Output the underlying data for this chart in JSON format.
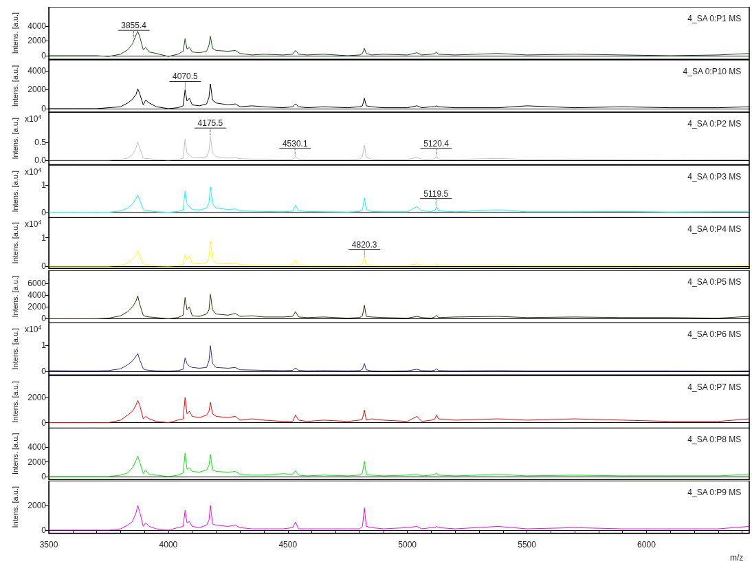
{
  "chart_data": [
    {
      "type": "line",
      "title": "4_SA 0:P1 MS",
      "ylabel": "Intens. [a.u.]",
      "xlim": [
        3500,
        6430
      ],
      "ylim": [
        -480,
        6570
      ],
      "yticks": [
        0,
        2000,
        4000
      ],
      "tick_labels": "y",
      "annotations": [
        {
          "text": "3855.4",
          "x": 3855.4,
          "y": 2300
        }
      ],
      "x": [
        3500,
        3600,
        3700,
        3750,
        3800,
        3830,
        3850,
        3865,
        3872,
        3880,
        3895,
        3905,
        3920,
        3950,
        4000,
        4040,
        4062,
        4070,
        4078,
        4088,
        4100,
        4130,
        4160,
        4170,
        4176,
        4185,
        4200,
        4250,
        4280,
        4300,
        4350,
        4400,
        4480,
        4520,
        4532,
        4545,
        4580,
        4650,
        4750,
        4800,
        4812,
        4820,
        4828,
        4850,
        4900,
        5000,
        5040,
        5060,
        5100,
        5115,
        5122,
        5130,
        5200,
        5380,
        5500,
        5700,
        5900,
        6100,
        6300,
        6430
      ],
      "series": [
        {
          "color": "#1a4a1a",
          "values": [
            0,
            0,
            0,
            -100,
            200,
            800,
            1600,
            2800,
            3300,
            2600,
            800,
            1100,
            500,
            300,
            -100,
            200,
            600,
            2300,
            900,
            1100,
            500,
            400,
            600,
            1400,
            2600,
            1000,
            700,
            600,
            700,
            300,
            100,
            200,
            100,
            200,
            700,
            200,
            100,
            200,
            0,
            100,
            300,
            1000,
            300,
            100,
            200,
            100,
            400,
            100,
            200,
            300,
            500,
            200,
            100,
            300,
            100,
            200,
            100,
            0,
            100,
            300
          ]
        }
      ]
    },
    {
      "type": "line",
      "title": "4_SA 0:P10 MS",
      "ylabel": "Intens. [a.u.]",
      "xlim": [
        3500,
        6430
      ],
      "ylim": [
        -360,
        5160
      ],
      "yticks": [
        0,
        2000,
        4000
      ],
      "tick_labels": "y",
      "annotations": [
        {
          "text": "4070.5",
          "x": 4070.5,
          "y": 2000
        }
      ],
      "x": [
        3500,
        3600,
        3700,
        3750,
        3800,
        3830,
        3850,
        3865,
        3872,
        3880,
        3895,
        3905,
        3920,
        3950,
        4000,
        4040,
        4062,
        4070,
        4078,
        4088,
        4100,
        4130,
        4160,
        4170,
        4176,
        4185,
        4200,
        4250,
        4280,
        4300,
        4350,
        4400,
        4480,
        4520,
        4532,
        4545,
        4580,
        4650,
        4750,
        4800,
        4812,
        4820,
        4828,
        4850,
        4900,
        5000,
        5040,
        5060,
        5100,
        5115,
        5122,
        5130,
        5200,
        5380,
        5500,
        5700,
        5900,
        6100,
        6300,
        6430
      ],
      "series": [
        {
          "color": "#000000",
          "values": [
            0,
            0,
            0,
            100,
            200,
            600,
            1000,
            1500,
            2100,
            1600,
            400,
            900,
            600,
            200,
            0,
            100,
            300,
            2000,
            800,
            1100,
            400,
            300,
            500,
            1200,
            2600,
            900,
            600,
            400,
            500,
            200,
            300,
            200,
            100,
            200,
            500,
            200,
            100,
            200,
            100,
            200,
            300,
            1100,
            300,
            200,
            100,
            100,
            300,
            100,
            200,
            200,
            300,
            200,
            100,
            100,
            300,
            100,
            200,
            100,
            100,
            200
          ]
        }
      ]
    },
    {
      "type": "line",
      "title": "4_SA 0:P2 MS",
      "ylabel": "Intens. [a.u.]",
      "xlim": [
        3500,
        6430
      ],
      "ylim": [
        -0.13,
        1.37
      ],
      "yticks": [
        {
          "value": 0,
          "label": "0.0"
        },
        0.5
      ],
      "tick_labels": "y",
      "annotations": [
        "x10$^{4}$",
        {
          "text": "4175.5",
          "x": 4175.5,
          "y": 0.68
        },
        {
          "text": "4530.1",
          "x": 4530.1,
          "y": 0.1
        },
        {
          "text": "5120.4",
          "x": 5120.4,
          "y": 0.1
        }
      ],
      "x": [
        3500,
        3600,
        3700,
        3750,
        3800,
        3830,
        3850,
        3865,
        3872,
        3880,
        3895,
        3905,
        3920,
        3950,
        4000,
        4040,
        4062,
        4070,
        4078,
        4088,
        4100,
        4130,
        4160,
        4170,
        4176,
        4185,
        4200,
        4250,
        4280,
        4300,
        4350,
        4400,
        4480,
        4520,
        4532,
        4545,
        4580,
        4650,
        4750,
        4800,
        4812,
        4820,
        4828,
        4850,
        4900,
        5000,
        5040,
        5060,
        5100,
        5115,
        5122,
        5130,
        5200,
        5380,
        5500,
        5700,
        5900,
        6100,
        6300,
        6430
      ],
      "series": [
        {
          "color": "#c0c0c0",
          "values": [
            0,
            0,
            0,
            0,
            0.02,
            0.06,
            0.15,
            0.35,
            0.52,
            0.35,
            0.06,
            0.05,
            0.04,
            0.02,
            0,
            0.02,
            0.05,
            0.6,
            0.2,
            0.15,
            0.08,
            0.06,
            0.1,
            0.25,
            0.68,
            0.2,
            0.1,
            0.06,
            0.07,
            0.04,
            0.03,
            0.03,
            0.02,
            0.03,
            0.1,
            0.03,
            0.02,
            0.02,
            0.02,
            0.03,
            0.1,
            0.43,
            0.08,
            0.03,
            0.02,
            0.02,
            0.08,
            0.03,
            0.02,
            0.05,
            0.1,
            0.03,
            0.02,
            0.05,
            0.02,
            0.03,
            0.02,
            0.01,
            0.02,
            0.03
          ]
        }
      ]
    },
    {
      "type": "line",
      "title": "4_SA 0:P3 MS",
      "ylabel": "Intens. [a.u.]",
      "xlim": [
        3500,
        6430
      ],
      "ylim": [
        -0.2,
        1.73
      ],
      "yticks": [
        0,
        1
      ],
      "tick_labels": "y",
      "annotations": [
        "x10$^{4}$",
        {
          "text": "5119.5",
          "x": 5119.5,
          "y": 0.2
        }
      ],
      "x": [
        3500,
        3600,
        3700,
        3750,
        3800,
        3830,
        3850,
        3865,
        3872,
        3880,
        3895,
        3905,
        3920,
        3950,
        4000,
        4040,
        4062,
        4070,
        4078,
        4088,
        4100,
        4130,
        4160,
        4170,
        4176,
        4185,
        4200,
        4250,
        4280,
        4300,
        4350,
        4400,
        4480,
        4520,
        4532,
        4545,
        4580,
        4650,
        4750,
        4800,
        4812,
        4820,
        4828,
        4850,
        4900,
        5000,
        5040,
        5060,
        5100,
        5115,
        5122,
        5130,
        5200,
        5380,
        5500,
        5700,
        5900,
        6100,
        6300,
        6430
      ],
      "series": [
        {
          "color": "#00ffff",
          "values": [
            0,
            0,
            0,
            0,
            0.05,
            0.15,
            0.3,
            0.5,
            0.63,
            0.45,
            0.1,
            0.06,
            0.05,
            0.02,
            0,
            0.03,
            0.08,
            0.78,
            0.3,
            0.2,
            0.1,
            0.08,
            0.15,
            0.35,
            0.93,
            0.3,
            0.15,
            0.1,
            0.12,
            0.05,
            0.04,
            0.03,
            0.02,
            0.04,
            0.25,
            0.05,
            0.03,
            0.02,
            0.01,
            0.03,
            0.1,
            0.53,
            0.1,
            0.03,
            0.02,
            0.02,
            0.2,
            0.05,
            0.03,
            0.06,
            0.2,
            0.05,
            0.02,
            0.08,
            0.02,
            0.02,
            0.03,
            0.01,
            0.02,
            0.02
          ]
        }
      ]
    },
    {
      "type": "line",
      "title": "4_SA 0:P4 MS",
      "ylabel": "Intens. [a.u.]",
      "xlim": [
        3500,
        6430
      ],
      "ylim": [
        -0.08,
        1.72
      ],
      "yticks": [
        0,
        1
      ],
      "tick_labels": "y",
      "annotations": [
        "x10$^{4}$",
        {
          "text": "4820.3",
          "x": 4820.3,
          "y": 0.3
        }
      ],
      "x": [
        3500,
        3600,
        3700,
        3750,
        3800,
        3830,
        3850,
        3865,
        3872,
        3880,
        3895,
        3905,
        3920,
        3950,
        4000,
        4040,
        4062,
        4070,
        4078,
        4088,
        4100,
        4130,
        4160,
        4170,
        4176,
        4185,
        4200,
        4250,
        4280,
        4300,
        4350,
        4400,
        4480,
        4520,
        4532,
        4545,
        4580,
        4650,
        4750,
        4800,
        4812,
        4820,
        4828,
        4850,
        4900,
        5000,
        5040,
        5060,
        5100,
        5115,
        5122,
        5130,
        5200,
        5380,
        5500,
        5700,
        5900,
        6100,
        6300,
        6430
      ],
      "series": [
        {
          "color": "#ffff00",
          "values": [
            0,
            0,
            0,
            0,
            0.03,
            0.1,
            0.25,
            0.4,
            0.53,
            0.35,
            0.08,
            0.06,
            0.04,
            0.01,
            0,
            0.02,
            0.06,
            0.4,
            0.22,
            0.35,
            0.1,
            0.08,
            0.12,
            0.3,
            0.88,
            0.25,
            0.1,
            0.08,
            0.1,
            0.05,
            0.03,
            0.03,
            0.02,
            0.03,
            0.2,
            0.04,
            0.02,
            0.02,
            0.01,
            0.02,
            0.1,
            0.3,
            0.05,
            0.02,
            0.01,
            0.02,
            0.08,
            0.03,
            0.02,
            0.04,
            0.08,
            0.03,
            0.02,
            0.03,
            0.02,
            0.02,
            0.02,
            0.01,
            0.01,
            0.03
          ]
        }
      ]
    },
    {
      "type": "line",
      "title": "4_SA 0:P5 MS",
      "ylabel": "Intens. [a.u.]",
      "xlim": [
        3500,
        6430
      ],
      "ylim": [
        -700,
        8200
      ],
      "yticks": [
        0,
        2000,
        4000,
        6000
      ],
      "tick_labels": "y",
      "x": [
        3500,
        3600,
        3700,
        3750,
        3800,
        3830,
        3850,
        3865,
        3872,
        3880,
        3895,
        3905,
        3920,
        3950,
        4000,
        4040,
        4062,
        4070,
        4078,
        4088,
        4100,
        4130,
        4160,
        4170,
        4176,
        4185,
        4200,
        4250,
        4280,
        4300,
        4350,
        4400,
        4480,
        4520,
        4532,
        4545,
        4580,
        4650,
        4750,
        4800,
        4812,
        4820,
        4828,
        4850,
        4900,
        5000,
        5040,
        5060,
        5100,
        5115,
        5122,
        5130,
        5200,
        5380,
        5500,
        5700,
        5900,
        6100,
        6300,
        6430
      ],
      "series": [
        {
          "color": "#333300",
          "values": [
            0,
            0,
            0,
            100,
            500,
            1200,
            2000,
            3000,
            3900,
            2500,
            600,
            400,
            300,
            200,
            0,
            200,
            600,
            3600,
            1500,
            2000,
            500,
            400,
            800,
            1500,
            4100,
            1500,
            800,
            600,
            900,
            400,
            500,
            300,
            300,
            400,
            1200,
            300,
            200,
            300,
            100,
            200,
            500,
            2300,
            400,
            300,
            200,
            100,
            400,
            200,
            100,
            300,
            600,
            200,
            300,
            400,
            200,
            300,
            200,
            200,
            100,
            400
          ]
        }
      ]
    },
    {
      "type": "line",
      "title": "4_SA 0:P6 MS",
      "ylabel": "Intens. [a.u.]",
      "xlim": [
        3500,
        6430
      ],
      "ylim": [
        -0.14,
        1.87
      ],
      "yticks": [
        0,
        1
      ],
      "tick_labels": "y",
      "annotations": [
        "x10$^{4}$"
      ],
      "x": [
        3500,
        3600,
        3700,
        3750,
        3800,
        3830,
        3850,
        3865,
        3872,
        3880,
        3895,
        3905,
        3920,
        3950,
        4000,
        4040,
        4062,
        4070,
        4078,
        4088,
        4100,
        4130,
        4160,
        4170,
        4176,
        4185,
        4200,
        4250,
        4280,
        4300,
        4350,
        4400,
        4480,
        4520,
        4532,
        4545,
        4580,
        4650,
        4750,
        4800,
        4812,
        4820,
        4828,
        4850,
        4900,
        5000,
        5040,
        5060,
        5100,
        5115,
        5122,
        5130,
        5200,
        5380,
        5500,
        5700,
        5900,
        6100,
        6300,
        6430
      ],
      "series": [
        {
          "color": "#2b2b8c",
          "values": [
            0.03,
            0.02,
            0.02,
            0.03,
            0.1,
            0.25,
            0.4,
            0.58,
            0.68,
            0.45,
            0.1,
            0.06,
            0.04,
            0.02,
            0.01,
            0.03,
            0.08,
            0.52,
            0.3,
            0.2,
            0.15,
            0.12,
            0.15,
            0.4,
            0.98,
            0.3,
            0.15,
            0.12,
            0.15,
            0.06,
            0.05,
            0.04,
            0.03,
            0.04,
            0.13,
            0.04,
            0.02,
            0.03,
            0.02,
            0.03,
            0.08,
            0.3,
            0.06,
            0.02,
            0.01,
            0.02,
            0.08,
            0.03,
            0.02,
            0.05,
            0.1,
            0.03,
            0.02,
            0.03,
            0.02,
            0.02,
            0.02,
            0.02,
            0.01,
            0.02
          ]
        }
      ]
    },
    {
      "type": "line",
      "title": "4_SA 0:P7 MS",
      "ylabel": "Intens. [a.u.]",
      "xlim": [
        3500,
        6430
      ],
      "ylim": [
        -430,
        3730
      ],
      "yticks": [
        0,
        2000
      ],
      "tick_labels": "y",
      "x": [
        3500,
        3600,
        3700,
        3750,
        3800,
        3830,
        3850,
        3865,
        3872,
        3880,
        3895,
        3905,
        3920,
        3950,
        4000,
        4040,
        4062,
        4070,
        4078,
        4088,
        4100,
        4130,
        4160,
        4170,
        4176,
        4185,
        4200,
        4250,
        4280,
        4300,
        4350,
        4400,
        4480,
        4520,
        4532,
        4545,
        4580,
        4650,
        4750,
        4800,
        4812,
        4820,
        4828,
        4850,
        4900,
        5000,
        5040,
        5060,
        5100,
        5115,
        5122,
        5130,
        5200,
        5380,
        5500,
        5700,
        5900,
        6100,
        6300,
        6430
      ],
      "series": [
        {
          "color": "#ff0000",
          "values": [
            0,
            0,
            0,
            0,
            200,
            600,
            900,
            1400,
            1750,
            1400,
            300,
            500,
            300,
            100,
            0,
            200,
            300,
            2000,
            700,
            900,
            500,
            400,
            600,
            900,
            1600,
            700,
            500,
            400,
            500,
            200,
            300,
            200,
            100,
            100,
            600,
            200,
            100,
            200,
            100,
            200,
            300,
            1000,
            200,
            300,
            200,
            100,
            500,
            100,
            200,
            300,
            600,
            300,
            200,
            300,
            200,
            300,
            200,
            100,
            100,
            300
          ]
        }
      ]
    },
    {
      "type": "line",
      "title": "4_SA 0:P8 MS",
      "ylabel": "Intens. [a.u.]",
      "xlim": [
        3500,
        6430
      ],
      "ylim": [
        -430,
        6640
      ],
      "yticks": [
        0,
        2000,
        4000
      ],
      "tick_labels": "y",
      "x": [
        3500,
        3600,
        3700,
        3750,
        3800,
        3830,
        3850,
        3865,
        3872,
        3880,
        3895,
        3905,
        3920,
        3950,
        4000,
        4040,
        4062,
        4070,
        4078,
        4088,
        4100,
        4130,
        4160,
        4170,
        4176,
        4185,
        4200,
        4250,
        4280,
        4300,
        4350,
        4400,
        4480,
        4520,
        4532,
        4545,
        4580,
        4650,
        4750,
        4800,
        4812,
        4820,
        4828,
        4850,
        4900,
        5000,
        5040,
        5060,
        5100,
        5115,
        5122,
        5130,
        5200,
        5380,
        5500,
        5700,
        5900,
        6100,
        6300,
        6430
      ],
      "series": [
        {
          "color": "#00ee00",
          "values": [
            0,
            0,
            0,
            0,
            200,
            500,
            1200,
            2200,
            2800,
            2000,
            400,
            900,
            300,
            200,
            0,
            200,
            500,
            3200,
            1000,
            1200,
            700,
            600,
            900,
            1500,
            3000,
            900,
            700,
            600,
            700,
            300,
            200,
            200,
            400,
            300,
            800,
            200,
            100,
            200,
            100,
            200,
            500,
            2100,
            300,
            200,
            100,
            200,
            300,
            100,
            200,
            300,
            500,
            200,
            100,
            300,
            100,
            200,
            100,
            100,
            100,
            300
          ]
        }
      ]
    },
    {
      "type": "line",
      "title": "4_SA 0:P9 MS",
      "ylabel": "Intens. [a.u.]",
      "xlabel": "m/z",
      "xlim": [
        3500,
        6430
      ],
      "ylim": [
        -260,
        4000
      ],
      "yticks": [
        0,
        2000
      ],
      "xticks": [
        3500,
        {
          "value": 3600,
          "label": null
        },
        {
          "value": 3700,
          "label": null
        },
        {
          "value": 3800,
          "label": null
        },
        {
          "value": 3900,
          "label": null
        },
        4000,
        {
          "value": 4100,
          "label": null
        },
        {
          "value": 4200,
          "label": null
        },
        {
          "value": 4300,
          "label": null
        },
        {
          "value": 4400,
          "label": null
        },
        4500,
        {
          "value": 4600,
          "label": null
        },
        {
          "value": 4700,
          "label": null
        },
        {
          "value": 4800,
          "label": null
        },
        {
          "value": 4900,
          "label": null
        },
        5000,
        {
          "value": 5100,
          "label": null
        },
        {
          "value": 5200,
          "label": null
        },
        {
          "value": 5300,
          "label": null
        },
        {
          "value": 5400,
          "label": null
        },
        5500,
        {
          "value": 5600,
          "label": null
        },
        {
          "value": 5700,
          "label": null
        },
        {
          "value": 5800,
          "label": null
        },
        {
          "value": 5900,
          "label": null
        },
        6000,
        {
          "value": 6100,
          "label": null
        },
        {
          "value": 6200,
          "label": null
        },
        {
          "value": 6300,
          "label": null
        },
        {
          "value": 6400,
          "label": null
        }
      ],
      "x": [
        3500,
        3600,
        3700,
        3750,
        3800,
        3830,
        3850,
        3865,
        3872,
        3880,
        3895,
        3905,
        3920,
        3950,
        4000,
        4040,
        4062,
        4070,
        4078,
        4088,
        4100,
        4130,
        4160,
        4170,
        4176,
        4185,
        4200,
        4250,
        4280,
        4300,
        4350,
        4400,
        4480,
        4520,
        4532,
        4545,
        4580,
        4650,
        4750,
        4800,
        4812,
        4820,
        4828,
        4850,
        4900,
        5000,
        5040,
        5060,
        5100,
        5115,
        5122,
        5130,
        5200,
        5380,
        5500,
        5700,
        5900,
        6100,
        6300,
        6430
      ],
      "series": [
        {
          "color": "#ff00ff",
          "values": [
            0,
            0,
            0,
            0,
            100,
            400,
            700,
            1400,
            2000,
            1500,
            300,
            600,
            300,
            100,
            0,
            200,
            300,
            1600,
            600,
            700,
            300,
            200,
            400,
            800,
            2000,
            500,
            400,
            300,
            400,
            200,
            100,
            100,
            100,
            200,
            650,
            100,
            100,
            100,
            100,
            100,
            300,
            1800,
            300,
            200,
            100,
            200,
            300,
            100,
            200,
            200,
            300,
            200,
            100,
            300,
            100,
            200,
            100,
            100,
            100,
            300
          ]
        }
      ]
    }
  ]
}
